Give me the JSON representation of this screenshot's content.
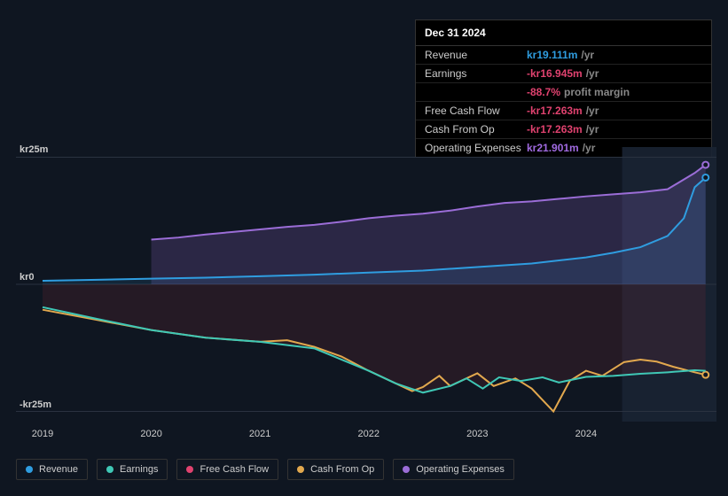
{
  "tooltip": {
    "title": "Dec 31 2024",
    "rows": [
      {
        "label": "Revenue",
        "value": "kr19.111m",
        "color": "#2f9de0",
        "suffix": "/yr"
      },
      {
        "label": "Earnings",
        "value": "-kr16.945m",
        "color": "#e0426f",
        "suffix": "/yr"
      },
      {
        "label": "",
        "value": "-88.7%",
        "color": "#e0426f",
        "suffix": "profit margin"
      },
      {
        "label": "Free Cash Flow",
        "value": "-kr17.263m",
        "color": "#e0426f",
        "suffix": "/yr"
      },
      {
        "label": "Cash From Op",
        "value": "-kr17.263m",
        "color": "#e0426f",
        "suffix": "/yr"
      },
      {
        "label": "Operating Expenses",
        "value": "kr21.901m",
        "color": "#a06ae0",
        "suffix": "/yr"
      }
    ]
  },
  "chart": {
    "type": "area-line",
    "background_color": "#0f1621",
    "grid_color": "#2a3240",
    "label_color": "#cccccc",
    "label_fontsize": 11,
    "forecast_band_left": 0.86,
    "forecast_band_color": "#1a2433",
    "ylim": [
      -27,
      27
    ],
    "yticks": [
      {
        "v": 25,
        "label": "kr25m"
      },
      {
        "v": 0,
        "label": "kr0"
      },
      {
        "v": -25,
        "label": "-kr25m"
      }
    ],
    "xlim": [
      2019,
      2025.2
    ],
    "xticks": [
      {
        "v": 2019,
        "label": "2019"
      },
      {
        "v": 2020,
        "label": "2020"
      },
      {
        "v": 2021,
        "label": "2021"
      },
      {
        "v": 2022,
        "label": "2022"
      },
      {
        "v": 2023,
        "label": "2023"
      },
      {
        "v": 2024,
        "label": "2024"
      }
    ],
    "series": [
      {
        "name": "Operating Expenses",
        "color": "#9b6dd7",
        "line_width": 2,
        "area_fill": true,
        "area_opacity": 0.2,
        "endpoint_marker": true,
        "points": [
          [
            2020.0,
            8.8
          ],
          [
            2020.25,
            9.2
          ],
          [
            2020.5,
            9.8
          ],
          [
            2020.75,
            10.3
          ],
          [
            2021.0,
            10.8
          ],
          [
            2021.25,
            11.3
          ],
          [
            2021.5,
            11.7
          ],
          [
            2021.75,
            12.3
          ],
          [
            2022.0,
            13.0
          ],
          [
            2022.25,
            13.5
          ],
          [
            2022.5,
            13.9
          ],
          [
            2022.75,
            14.5
          ],
          [
            2023.0,
            15.3
          ],
          [
            2023.25,
            16.0
          ],
          [
            2023.5,
            16.3
          ],
          [
            2023.75,
            16.8
          ],
          [
            2024.0,
            17.3
          ],
          [
            2024.25,
            17.7
          ],
          [
            2024.5,
            18.1
          ],
          [
            2024.75,
            18.7
          ],
          [
            2025.0,
            21.9
          ],
          [
            2025.1,
            23.5
          ]
        ]
      },
      {
        "name": "Revenue",
        "color": "#2f9de0",
        "line_width": 2,
        "area_fill": true,
        "area_opacity": 0.12,
        "endpoint_marker": true,
        "points": [
          [
            2019.0,
            0.7
          ],
          [
            2019.5,
            0.9
          ],
          [
            2020.0,
            1.1
          ],
          [
            2020.5,
            1.3
          ],
          [
            2021.0,
            1.6
          ],
          [
            2021.5,
            1.9
          ],
          [
            2022.0,
            2.3
          ],
          [
            2022.5,
            2.7
          ],
          [
            2023.0,
            3.4
          ],
          [
            2023.5,
            4.1
          ],
          [
            2024.0,
            5.3
          ],
          [
            2024.25,
            6.2
          ],
          [
            2024.5,
            7.3
          ],
          [
            2024.75,
            9.5
          ],
          [
            2024.9,
            13.0
          ],
          [
            2025.0,
            19.1
          ],
          [
            2025.1,
            21.0
          ]
        ]
      },
      {
        "name": "Cash From Op",
        "color": "#e2a84e",
        "line_width": 2,
        "area_fill": false,
        "endpoint_marker": true,
        "points": [
          [
            2019.0,
            -5.0
          ],
          [
            2019.5,
            -7.0
          ],
          [
            2020.0,
            -9.0
          ],
          [
            2020.5,
            -10.5
          ],
          [
            2021.0,
            -11.3
          ],
          [
            2021.25,
            -11.0
          ],
          [
            2021.5,
            -12.3
          ],
          [
            2021.75,
            -14.2
          ],
          [
            2022.0,
            -17.0
          ],
          [
            2022.25,
            -19.5
          ],
          [
            2022.4,
            -21.0
          ],
          [
            2022.5,
            -20.2
          ],
          [
            2022.65,
            -18.0
          ],
          [
            2022.75,
            -20.0
          ],
          [
            2023.0,
            -17.5
          ],
          [
            2023.15,
            -20.0
          ],
          [
            2023.35,
            -18.5
          ],
          [
            2023.5,
            -20.5
          ],
          [
            2023.7,
            -25.0
          ],
          [
            2023.85,
            -19.0
          ],
          [
            2024.0,
            -17.0
          ],
          [
            2024.15,
            -18.0
          ],
          [
            2024.35,
            -15.3
          ],
          [
            2024.5,
            -14.8
          ],
          [
            2024.65,
            -15.2
          ],
          [
            2024.8,
            -16.2
          ],
          [
            2025.0,
            -17.3
          ],
          [
            2025.1,
            -17.8
          ]
        ]
      },
      {
        "name": "Earnings",
        "color": "#3fc8b6",
        "line_width": 2,
        "area_fill": true,
        "area_opacity": 0.18,
        "area_color": "#8b2a3a",
        "endpoint_marker": false,
        "points": [
          [
            2019.0,
            -4.5
          ],
          [
            2019.5,
            -6.8
          ],
          [
            2020.0,
            -9.0
          ],
          [
            2020.5,
            -10.5
          ],
          [
            2021.0,
            -11.3
          ],
          [
            2021.5,
            -12.6
          ],
          [
            2022.0,
            -17.0
          ],
          [
            2022.25,
            -19.5
          ],
          [
            2022.5,
            -21.3
          ],
          [
            2022.75,
            -20.0
          ],
          [
            2022.9,
            -18.5
          ],
          [
            2023.05,
            -20.5
          ],
          [
            2023.2,
            -18.3
          ],
          [
            2023.4,
            -19.0
          ],
          [
            2023.6,
            -18.3
          ],
          [
            2023.75,
            -19.3
          ],
          [
            2024.0,
            -18.2
          ],
          [
            2024.25,
            -18.0
          ],
          [
            2024.5,
            -17.6
          ],
          [
            2024.75,
            -17.3
          ],
          [
            2025.0,
            -16.9
          ],
          [
            2025.1,
            -17.0
          ]
        ]
      }
    ],
    "legend": [
      {
        "label": "Revenue",
        "color": "#2f9de0"
      },
      {
        "label": "Earnings",
        "color": "#3fc8b6"
      },
      {
        "label": "Free Cash Flow",
        "color": "#e0426f"
      },
      {
        "label": "Cash From Op",
        "color": "#e2a84e"
      },
      {
        "label": "Operating Expenses",
        "color": "#9b6dd7"
      }
    ]
  }
}
